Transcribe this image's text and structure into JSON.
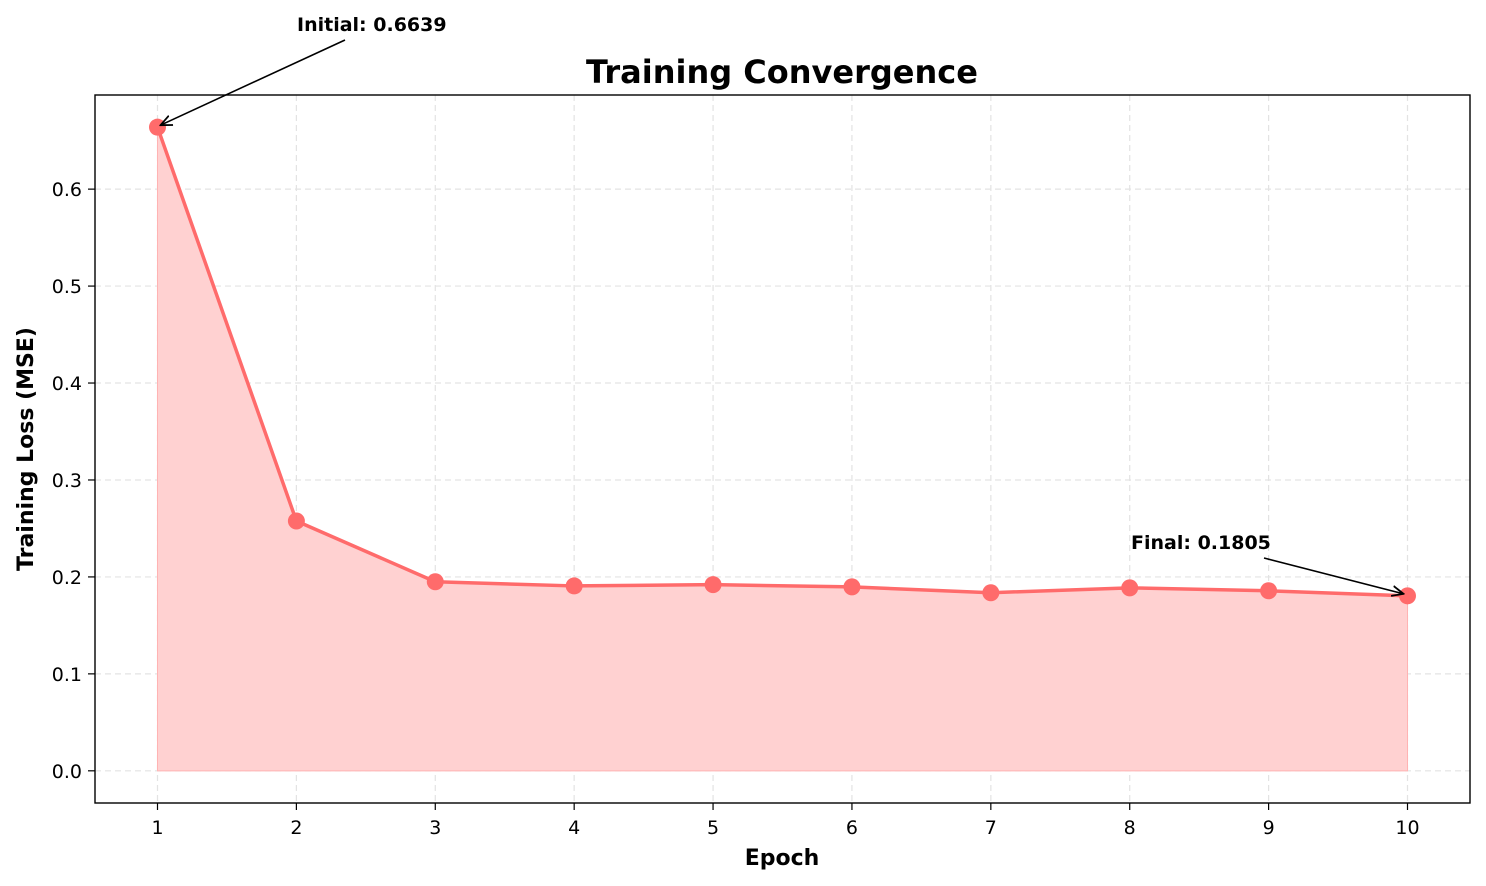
{
  "chart_data": {
    "type": "line",
    "title": "Training Convergence",
    "xlabel": "Epoch",
    "ylabel": "Training Loss (MSE)",
    "x": [
      1,
      2,
      3,
      4,
      5,
      6,
      7,
      8,
      9,
      10
    ],
    "series": [
      {
        "values": [
          0.6639,
          0.2577,
          0.195,
          0.1907,
          0.192,
          0.1897,
          0.1837,
          0.1887,
          0.1857,
          0.1805
        ],
        "color": "#ff6b6b",
        "fill": "#ffd1d1",
        "marker": "circle"
      }
    ],
    "xticks": [
      "1",
      "2",
      "3",
      "4",
      "5",
      "6",
      "7",
      "8",
      "9",
      "10"
    ],
    "yticks": [
      "0.0",
      "0.1",
      "0.2",
      "0.3",
      "0.4",
      "0.5",
      "0.6"
    ],
    "xlim": [
      0.55,
      10.45
    ],
    "ylim": [
      -0.0332,
      0.6971
    ],
    "grid": true,
    "annotations": [
      {
        "text": "Initial: 0.6639",
        "x": 1,
        "y": 0.6639
      },
      {
        "text": "Final: 0.1805",
        "x": 10,
        "y": 0.1805
      }
    ]
  }
}
